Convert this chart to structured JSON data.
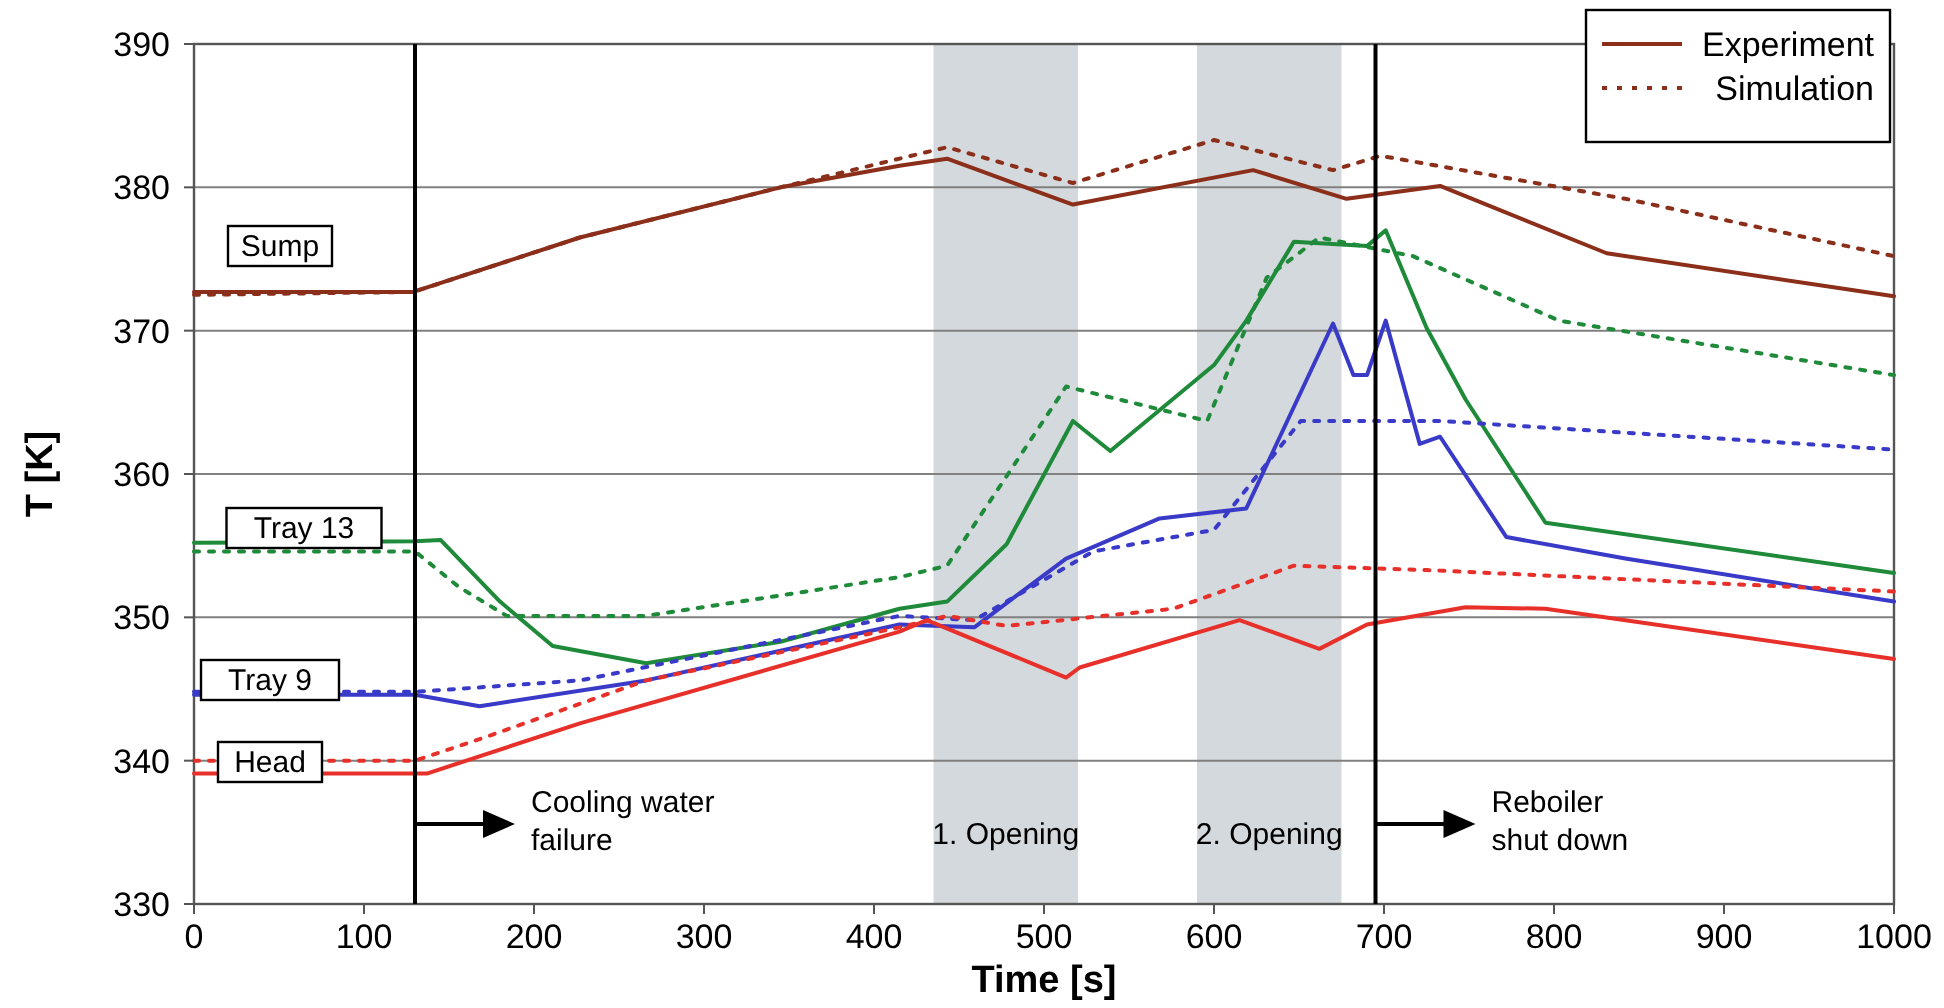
{
  "chart_data": {
    "type": "line",
    "xlabel": "Time [s]",
    "ylabel": "T [K]",
    "xlim": [
      0,
      1000
    ],
    "xticks": [
      0,
      100,
      200,
      300,
      400,
      500,
      600,
      700,
      800,
      900,
      1000
    ],
    "ylim": [
      330,
      390
    ],
    "yticks": [
      330,
      340,
      350,
      360,
      370,
      380,
      390
    ],
    "grid": "y",
    "legend": "top right",
    "series": [
      {
        "name": "Experiment",
        "color": "#8b2e1a",
        "line_style": "solid",
        "x": [
          0,
          129,
          227,
          345,
          415,
          443,
          517,
          623,
          678,
          733,
          831,
          1000
        ],
        "values": [
          372.7,
          372.7,
          376.5,
          380,
          381.5,
          382,
          378.8,
          381.2,
          379.2,
          380.1,
          375.4,
          372.4
        ]
      },
      {
        "name": "Simulation",
        "color": "#8b2e1a",
        "line_style": "dotted",
        "x": [
          0,
          129,
          227,
          345,
          443,
          517,
          600,
          670,
          698,
          842,
          1000
        ],
        "values": [
          372.5,
          372.7,
          376.5,
          380,
          382.8,
          380.3,
          383.3,
          381.2,
          382.2,
          379.2,
          375.2
        ]
      },
      {
        "color": "#1e8a3a",
        "line_style": "solid",
        "x": [
          0,
          130,
          145,
          180,
          211,
          266,
          345,
          415,
          443,
          478,
          517,
          539,
          600,
          619,
          647,
          690,
          701,
          725,
          748,
          795,
          1000
        ],
        "values": [
          355.2,
          355.3,
          355.4,
          351.1,
          348,
          346.8,
          348.3,
          350.6,
          351.1,
          355.1,
          363.7,
          361.6,
          367.6,
          370.7,
          376.2,
          375.9,
          377,
          370.2,
          365.2,
          356.6,
          353.1
        ]
      },
      {
        "color": "#1e8a3a",
        "line_style": "dotted",
        "x": [
          0,
          130,
          156,
          184,
          266,
          415,
          443,
          513,
          596,
          631,
          662,
          717,
          803,
          1000
        ],
        "values": [
          354.6,
          354.6,
          352.1,
          350.1,
          350.1,
          352.8,
          353.6,
          366.1,
          363.7,
          373.7,
          376.5,
          375.2,
          370.7,
          366.9
        ]
      },
      {
        "color": "#3a3ac8",
        "line_style": "solid",
        "x": [
          0,
          130,
          168,
          266,
          415,
          459,
          513,
          568,
          619,
          670,
          682,
          690,
          701,
          721,
          733,
          772,
          842,
          1000
        ],
        "values": [
          344.6,
          344.6,
          343.8,
          345.6,
          349.5,
          349.3,
          354.1,
          356.9,
          357.6,
          370.5,
          366.9,
          366.9,
          370.7,
          362.1,
          362.6,
          355.6,
          354.1,
          351.1
        ]
      },
      {
        "color": "#3a3ac8",
        "line_style": "dotted",
        "x": [
          0,
          130,
          227,
          415,
          459,
          529,
          600,
          651,
          733,
          1000
        ],
        "values": [
          344.8,
          344.8,
          345.6,
          350.1,
          349.8,
          354.6,
          356.1,
          363.7,
          363.7,
          361.7
        ]
      },
      {
        "color": "#e8302a",
        "line_style": "solid",
        "x": [
          0,
          137,
          227,
          415,
          431,
          513,
          521,
          615,
          662,
          690,
          748,
          795,
          1000
        ],
        "values": [
          339.1,
          339.1,
          342.6,
          349,
          349.8,
          345.8,
          346.5,
          349.8,
          347.8,
          349.5,
          350.7,
          350.6,
          347.1
        ]
      },
      {
        "color": "#e8302a",
        "line_style": "dotted",
        "x": [
          0,
          130,
          168,
          266,
          415,
          443,
          478,
          576,
          647,
          725,
          1000
        ],
        "values": [
          340,
          340,
          341.5,
          345.6,
          349.3,
          350.1,
          349.4,
          350.6,
          353.6,
          353.3,
          351.8
        ]
      }
    ],
    "ref_lines": [
      {
        "axis": "x",
        "value": 130,
        "color": "#000000"
      },
      {
        "axis": "x",
        "value": 695,
        "color": "#000000"
      }
    ],
    "bands": [
      {
        "axis": "x",
        "from": 435,
        "to": 520,
        "label": "1. Opening",
        "color": "#d3d9dc"
      },
      {
        "axis": "x",
        "from": 590,
        "to": 675,
        "label": "2. Opening",
        "color": "#d3d9dc"
      }
    ],
    "annotations": [
      "Sump",
      "Tray 13",
      "Tray 9",
      "Head",
      "Cooling water failure",
      "Reboiler shut down"
    ]
  }
}
